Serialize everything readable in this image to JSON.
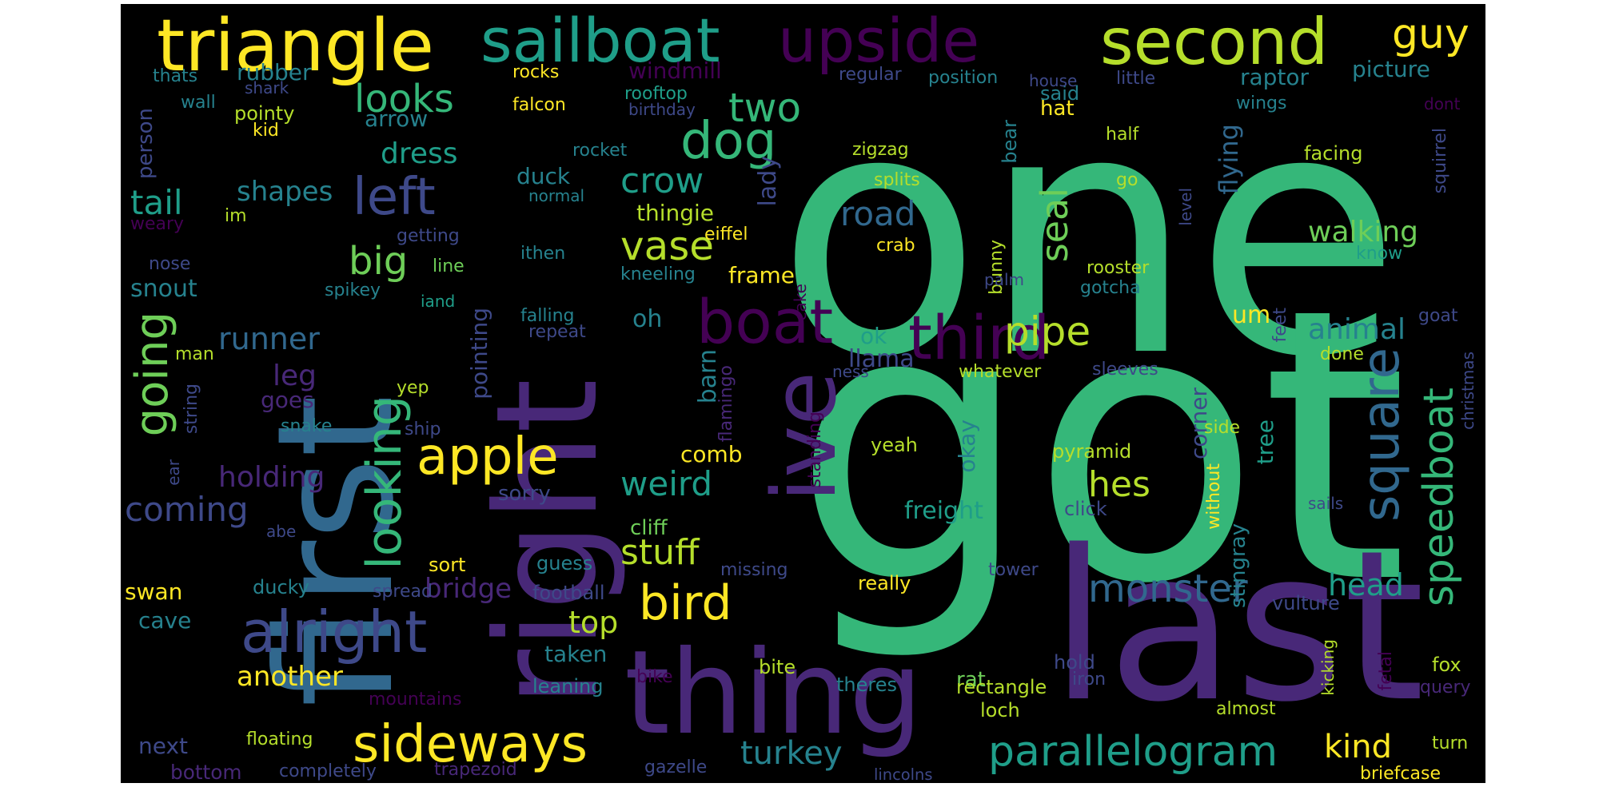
{
  "palette": {
    "yellow": "#fde725",
    "lime": "#b5de2b",
    "lgreen": "#6ece58",
    "green": "#35b779",
    "teal": "#1f9e89",
    "cyan": "#26828e",
    "blue": "#31688e",
    "indigo": "#3e4989",
    "purple": "#482878",
    "violet": "#440154"
  },
  "words": [
    {
      "text": "one",
      "color": "green"
    },
    {
      "text": "got",
      "color": "green"
    },
    {
      "text": "right",
      "color": "purple"
    },
    {
      "text": "first",
      "color": "blue"
    },
    {
      "text": "last",
      "color": "purple"
    },
    {
      "text": "thing",
      "color": "purple"
    },
    {
      "text": "triangle",
      "color": "yellow"
    },
    {
      "text": "sailboat",
      "color": "teal"
    },
    {
      "text": "upside",
      "color": "violet"
    },
    {
      "text": "second",
      "color": "lime"
    },
    {
      "text": "guy",
      "color": "yellow"
    },
    {
      "text": "dog",
      "color": "green"
    },
    {
      "text": "left",
      "color": "indigo"
    },
    {
      "text": "ive",
      "color": "purple"
    },
    {
      "text": "boat",
      "color": "violet"
    },
    {
      "text": "third",
      "color": "violet"
    },
    {
      "text": "square",
      "color": "blue"
    },
    {
      "text": "looking",
      "color": "green"
    },
    {
      "text": "alright",
      "color": "indigo"
    },
    {
      "text": "sideways",
      "color": "yellow"
    },
    {
      "text": "parallelogram",
      "color": "teal"
    },
    {
      "text": "apple",
      "color": "yellow"
    },
    {
      "text": "bird",
      "color": "yellow"
    },
    {
      "text": "speedboat",
      "color": "green"
    },
    {
      "text": "going",
      "color": "lgreen"
    },
    {
      "text": "monster",
      "color": "blue"
    },
    {
      "text": "looks",
      "color": "green"
    },
    {
      "text": "two",
      "color": "green"
    },
    {
      "text": "crow",
      "color": "teal"
    },
    {
      "text": "vase",
      "color": "lime"
    },
    {
      "text": "seal",
      "color": "lgreen"
    },
    {
      "text": "big",
      "color": "lgreen"
    },
    {
      "text": "pipe",
      "color": "lime"
    },
    {
      "text": "road",
      "color": "blue"
    },
    {
      "text": "tail",
      "color": "teal"
    },
    {
      "text": "shapes",
      "color": "cyan"
    },
    {
      "text": "dress",
      "color": "teal"
    },
    {
      "text": "runner",
      "color": "blue"
    },
    {
      "text": "coming",
      "color": "indigo"
    },
    {
      "text": "holding",
      "color": "purple"
    },
    {
      "text": "weird",
      "color": "teal"
    },
    {
      "text": "hes",
      "color": "lime"
    },
    {
      "text": "stuff",
      "color": "lime"
    },
    {
      "text": "bridge",
      "color": "purple"
    },
    {
      "text": "top",
      "color": "lime"
    },
    {
      "text": "another",
      "color": "yellow"
    },
    {
      "text": "turkey",
      "color": "cyan"
    },
    {
      "text": "kind",
      "color": "yellow"
    },
    {
      "text": "head",
      "color": "teal"
    },
    {
      "text": "animal",
      "color": "cyan"
    },
    {
      "text": "walking",
      "color": "lgreen"
    },
    {
      "text": "leg",
      "color": "purple"
    },
    {
      "text": "freight",
      "color": "teal"
    },
    {
      "text": "flying",
      "color": "blue"
    },
    {
      "text": "lady",
      "color": "indigo"
    },
    {
      "text": "thingie",
      "color": "lime"
    },
    {
      "text": "duck",
      "color": "cyan"
    },
    {
      "text": "arrow",
      "color": "cyan"
    },
    {
      "text": "windmill",
      "color": "violet"
    },
    {
      "text": "rubber",
      "color": "cyan"
    },
    {
      "text": "raptor",
      "color": "cyan"
    },
    {
      "text": "picture",
      "color": "cyan"
    },
    {
      "text": "hat",
      "color": "yellow"
    },
    {
      "text": "said",
      "color": "cyan"
    },
    {
      "text": "position",
      "color": "cyan"
    },
    {
      "text": "regular",
      "color": "indigo"
    },
    {
      "text": "rooftop",
      "color": "teal"
    },
    {
      "text": "birthday",
      "color": "indigo"
    },
    {
      "text": "falcon",
      "color": "yellow"
    },
    {
      "text": "rocks",
      "color": "yellow"
    },
    {
      "text": "little",
      "color": "indigo"
    },
    {
      "text": "house",
      "color": "indigo"
    },
    {
      "text": "wings",
      "color": "cyan"
    },
    {
      "text": "dont",
      "color": "violet"
    },
    {
      "text": "thats",
      "color": "cyan"
    },
    {
      "text": "shark",
      "color": "indigo"
    },
    {
      "text": "wall",
      "color": "cyan"
    },
    {
      "text": "pointy",
      "color": "lime"
    },
    {
      "text": "kid",
      "color": "yellow"
    },
    {
      "text": "person",
      "color": "indigo"
    },
    {
      "text": "rocket",
      "color": "cyan"
    },
    {
      "text": "normal",
      "color": "cyan"
    },
    {
      "text": "zigzag",
      "color": "lime"
    },
    {
      "text": "splits",
      "color": "lime"
    },
    {
      "text": "crab",
      "color": "yellow"
    },
    {
      "text": "half",
      "color": "lime"
    },
    {
      "text": "go",
      "color": "lime"
    },
    {
      "text": "facing",
      "color": "lime"
    },
    {
      "text": "squirrel",
      "color": "indigo"
    },
    {
      "text": "bear",
      "color": "cyan"
    },
    {
      "text": "weary",
      "color": "violet"
    },
    {
      "text": "im",
      "color": "lime"
    },
    {
      "text": "eiffel",
      "color": "yellow"
    },
    {
      "text": "getting",
      "color": "indigo"
    },
    {
      "text": "ithen",
      "color": "cyan"
    },
    {
      "text": "level",
      "color": "indigo"
    },
    {
      "text": "know",
      "color": "teal"
    },
    {
      "text": "nose",
      "color": "indigo"
    },
    {
      "text": "snout",
      "color": "cyan"
    },
    {
      "text": "line",
      "color": "lgreen"
    },
    {
      "text": "kneeling",
      "color": "cyan"
    },
    {
      "text": "frame",
      "color": "yellow"
    },
    {
      "text": "bunny",
      "color": "lime"
    },
    {
      "text": "rooster",
      "color": "lime"
    },
    {
      "text": "gotcha",
      "color": "cyan"
    },
    {
      "text": "palm",
      "color": "indigo"
    },
    {
      "text": "iand",
      "color": "teal"
    },
    {
      "text": "spikey",
      "color": "cyan"
    },
    {
      "text": "cake",
      "color": "violet"
    },
    {
      "text": "falling",
      "color": "cyan"
    },
    {
      "text": "repeat",
      "color": "indigo"
    },
    {
      "text": "oh",
      "color": "cyan"
    },
    {
      "text": "um",
      "color": "yellow"
    },
    {
      "text": "feet",
      "color": "indigo"
    },
    {
      "text": "goat",
      "color": "indigo"
    },
    {
      "text": "ok",
      "color": "teal"
    },
    {
      "text": "llama",
      "color": "indigo"
    },
    {
      "text": "done",
      "color": "lime"
    },
    {
      "text": "man",
      "color": "lime"
    },
    {
      "text": "barn",
      "color": "cyan"
    },
    {
      "text": "flamingo",
      "color": "purple"
    },
    {
      "text": "ness",
      "color": "indigo"
    },
    {
      "text": "whatever",
      "color": "lime"
    },
    {
      "text": "sleeves",
      "color": "indigo"
    },
    {
      "text": "yep",
      "color": "lime"
    },
    {
      "text": "goes",
      "color": "purple"
    },
    {
      "text": "pointing",
      "color": "indigo"
    },
    {
      "text": "string",
      "color": "indigo"
    },
    {
      "text": "snake",
      "color": "cyan"
    },
    {
      "text": "ship",
      "color": "indigo"
    },
    {
      "text": "corner",
      "color": "indigo"
    },
    {
      "text": "side",
      "color": "lime"
    },
    {
      "text": "christmas",
      "color": "indigo"
    },
    {
      "text": "ear",
      "color": "indigo"
    },
    {
      "text": "comb",
      "color": "yellow"
    },
    {
      "text": "standing",
      "color": "violet"
    },
    {
      "text": "yeah",
      "color": "lime"
    },
    {
      "text": "okay",
      "color": "cyan"
    },
    {
      "text": "pyramid",
      "color": "lime"
    },
    {
      "text": "tree",
      "color": "teal"
    },
    {
      "text": "sorry",
      "color": "indigo"
    },
    {
      "text": "without",
      "color": "yellow"
    },
    {
      "text": "click",
      "color": "indigo"
    },
    {
      "text": "sails",
      "color": "indigo"
    },
    {
      "text": "abe",
      "color": "indigo"
    },
    {
      "text": "cliff",
      "color": "lgreen"
    },
    {
      "text": "stingray",
      "color": "cyan"
    },
    {
      "text": "sort",
      "color": "yellow"
    },
    {
      "text": "guess",
      "color": "cyan"
    },
    {
      "text": "missing",
      "color": "indigo"
    },
    {
      "text": "tower",
      "color": "indigo"
    },
    {
      "text": "swan",
      "color": "yellow"
    },
    {
      "text": "ducky",
      "color": "cyan"
    },
    {
      "text": "spread",
      "color": "indigo"
    },
    {
      "text": "football",
      "color": "indigo"
    },
    {
      "text": "really",
      "color": "yellow"
    },
    {
      "text": "vulture",
      "color": "indigo"
    },
    {
      "text": "cave",
      "color": "cyan"
    },
    {
      "text": "taken",
      "color": "cyan"
    },
    {
      "text": "rat",
      "color": "lgreen"
    },
    {
      "text": "bike",
      "color": "violet"
    },
    {
      "text": "bite",
      "color": "lime"
    },
    {
      "text": "hold",
      "color": "indigo"
    },
    {
      "text": "fox",
      "color": "lime"
    },
    {
      "text": "leaning",
      "color": "cyan"
    },
    {
      "text": "theres",
      "color": "cyan"
    },
    {
      "text": "rectangle",
      "color": "lime"
    },
    {
      "text": "iron",
      "color": "indigo"
    },
    {
      "text": "kicking",
      "color": "lime"
    },
    {
      "text": "query",
      "color": "purple"
    },
    {
      "text": "mountains",
      "color": "violet"
    },
    {
      "text": "fetal",
      "color": "violet"
    },
    {
      "text": "loch",
      "color": "lime"
    },
    {
      "text": "almost",
      "color": "lime"
    },
    {
      "text": "next",
      "color": "indigo"
    },
    {
      "text": "floating",
      "color": "lime"
    },
    {
      "text": "bottom",
      "color": "purple"
    },
    {
      "text": "completely",
      "color": "indigo"
    },
    {
      "text": "trapezoid",
      "color": "purple"
    },
    {
      "text": "gazelle",
      "color": "indigo"
    },
    {
      "text": "lincolns",
      "color": "indigo"
    },
    {
      "text": "turn",
      "color": "lime"
    },
    {
      "text": "briefcase",
      "color": "yellow"
    }
  ]
}
